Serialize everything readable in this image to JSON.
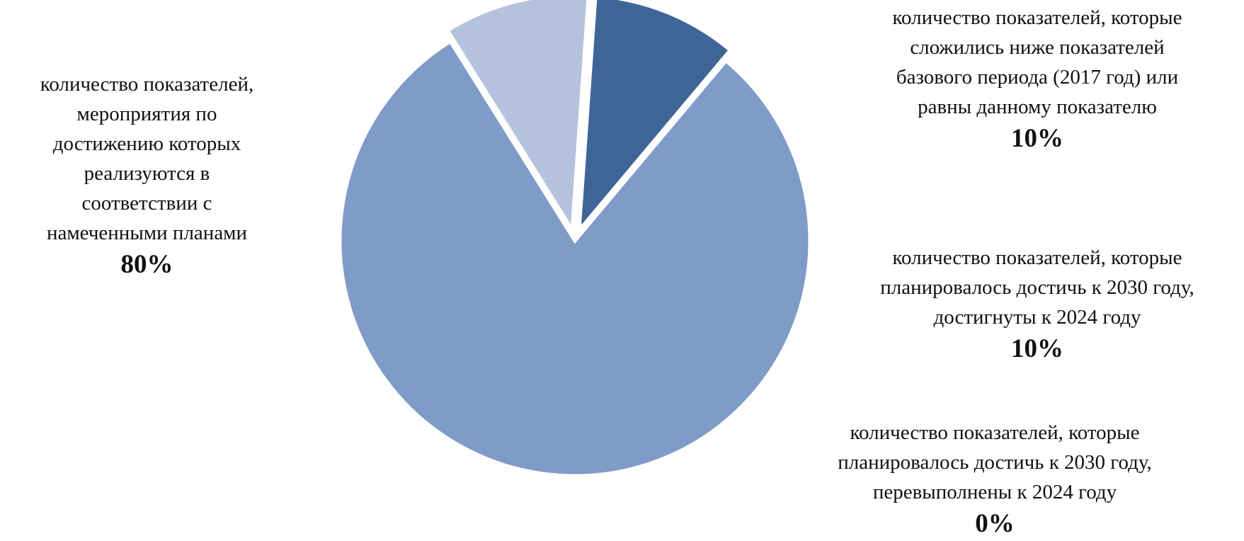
{
  "chart_data": {
    "type": "pie",
    "title": "",
    "slices": [
      {
        "label_lines": [
          "количество показателей,",
          "мероприятия по",
          "достижению которых",
          "реализуются в",
          "соответствии с",
          "намеченными планами"
        ],
        "value": 80,
        "value_label": "80%",
        "color": "#7f9bc8",
        "exploded": false
      },
      {
        "label_lines": [
          "количество показателей, которые",
          "сложились ниже показателей",
          "базового периода (2017 год) или",
          "равны данному показателю"
        ],
        "value": 10,
        "value_label": "10%",
        "color": "#b4c2de",
        "exploded": true
      },
      {
        "label_lines": [
          "количество показателей, которые",
          "планировалось достичь к 2030 году,",
          "достигнуты к 2024 году"
        ],
        "value": 10,
        "value_label": "10%",
        "color": "#3e6596",
        "exploded": true
      },
      {
        "label_lines": [
          "количество показателей, которые",
          "планировалось достичь к 2030 году,",
          "перевыполнены к 2024 году"
        ],
        "value": 0,
        "value_label": "0%",
        "color": "#2c4a73",
        "exploded": false
      }
    ],
    "start_angle_deg": 40,
    "legend": "none"
  }
}
